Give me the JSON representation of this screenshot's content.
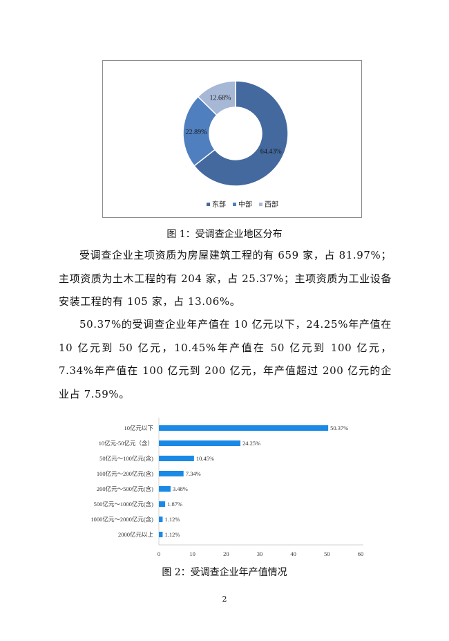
{
  "figure1": {
    "caption": "图 1：受调查企业地区分布",
    "chart_data": {
      "type": "pie",
      "variant": "donut",
      "categories": [
        "东部",
        "中部",
        "西部"
      ],
      "values": [
        64.43,
        22.89,
        12.68
      ],
      "labels": [
        "64.43%",
        "22.89%",
        "12.68%"
      ],
      "colors": [
        "#44699f",
        "#4f7fbf",
        "#a7b8d6"
      ],
      "legend": "bottom"
    }
  },
  "paragraphs": [
    "受调查企业主项资质为房屋建筑工程的有 659 家，占 81.97%；主项资质为土木工程的有 204 家，占 25.37%；主项资质为工业设备安装工程的有 105 家，占 13.06%。",
    "50.37%的受调查企业年产值在 10 亿元以下，24.25%年产值在 10 亿元到 50 亿元，10.45%年产值在 50 亿元到 100 亿元，7.34%年产值在 100 亿元到 200 亿元，年产值超过 200 亿元的企业占 7.59%。"
  ],
  "figure2": {
    "caption": "图 2：受调查企业年产值情况",
    "chart_data": {
      "type": "bar",
      "orientation": "horizontal",
      "categories": [
        "10亿元以下",
        "10亿元-50亿元（含）",
        "50亿元～100亿元(含)",
        "100亿元～200亿元(含)",
        "200亿元～500亿元(含)",
        "500亿元～1000亿元(含)",
        "1000亿元～2000亿元(含)",
        "2000亿元以上"
      ],
      "values": [
        50.37,
        24.25,
        10.45,
        7.34,
        3.48,
        1.87,
        1.12,
        1.12
      ],
      "data_labels": [
        "50.37%",
        "24.25%",
        "10.45%",
        "7.34%",
        "3.48%",
        "1.87%",
        "1.12%",
        "1.12%"
      ],
      "xlim": [
        0,
        60
      ],
      "xticks": [
        "0",
        "10",
        "20",
        "30",
        "40",
        "50",
        "60"
      ],
      "color": "#1a8ae6",
      "grid": false
    }
  },
  "page_number": "2"
}
